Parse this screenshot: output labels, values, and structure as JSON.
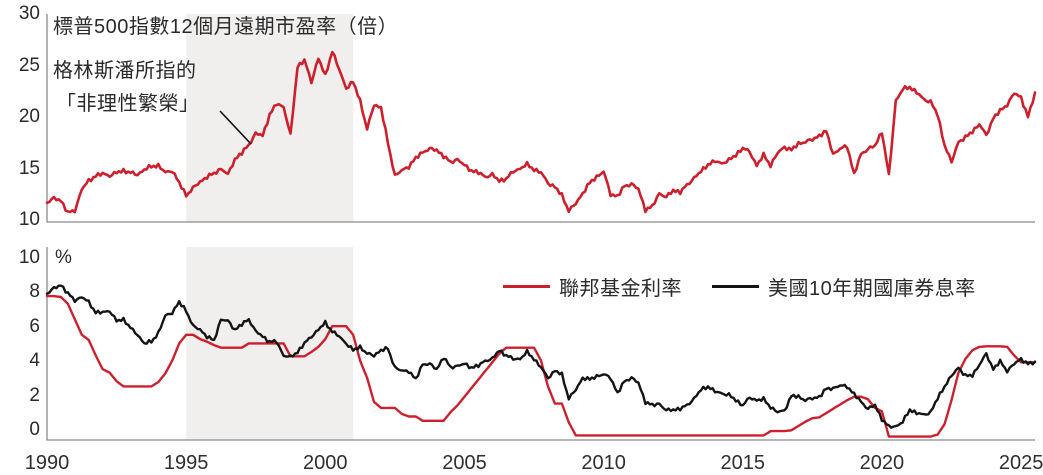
{
  "colors": {
    "accent_red": "#ce1f2d",
    "line_black": "#141414",
    "shade": "#f0efee",
    "axis": "#8a8a8a",
    "text": "#2a2a2a"
  },
  "chart_data": [
    {
      "type": "line",
      "title": "標普500指數12個月遠期市盈率（倍）",
      "annotations": [
        "格林斯潘所指的",
        "「非理性繁榮」"
      ],
      "xlim": [
        1990,
        2025.5
      ],
      "ylim": [
        10,
        30
      ],
      "y_ticks": [
        30,
        25,
        20,
        15,
        10
      ],
      "x_ticks": [
        1990,
        1995,
        2000,
        2005,
        2010,
        2015,
        2020,
        2025
      ],
      "x_labels_shown": false,
      "grid": false,
      "legend": "none",
      "shaded_span": [
        1995,
        2001
      ],
      "x_start": 1990,
      "x_step": 0.25,
      "series": [
        {
          "id": "forward_pe",
          "name": "標普500指數12個月遠期市盈率",
          "color": "#ce1f2d",
          "values": [
            11.7,
            12.1,
            11.9,
            10.7,
            10.9,
            13.0,
            13.8,
            14.3,
            14.5,
            14.3,
            14.6,
            14.8,
            14.6,
            14.4,
            14.9,
            15.2,
            15.3,
            14.6,
            14.8,
            13.6,
            12.4,
            13.1,
            13.7,
            14.2,
            14.5,
            15.0,
            14.4,
            15.9,
            16.5,
            17.3,
            18.4,
            18.2,
            20.2,
            21.3,
            21.0,
            18.2,
            24.9,
            25.5,
            23.4,
            25.7,
            24.0,
            26.4,
            24.6,
            22.8,
            23.4,
            21.6,
            18.8,
            21.2,
            20.9,
            17.5,
            14.3,
            14.8,
            15.2,
            16.0,
            16.6,
            16.9,
            16.8,
            16.2,
            15.6,
            15.9,
            15.3,
            14.8,
            14.6,
            14.2,
            14.4,
            13.8,
            14.0,
            14.7,
            15.0,
            15.4,
            14.9,
            14.6,
            13.6,
            13.2,
            12.4,
            10.9,
            11.6,
            12.6,
            13.6,
            14.2,
            14.7,
            12.5,
            12.3,
            13.3,
            13.5,
            13.0,
            11.0,
            11.3,
            12.6,
            12.2,
            12.9,
            12.7,
            13.4,
            14.1,
            14.7,
            15.4,
            15.7,
            15.5,
            15.8,
            16.3,
            17.0,
            16.6,
            15.3,
            16.3,
            15.3,
            16.5,
            17.1,
            16.8,
            17.4,
            17.6,
            17.8,
            18.2,
            18.6,
            16.4,
            16.9,
            17.2,
            14.4,
            16.4,
            16.9,
            17.2,
            18.6,
            14.3,
            21.6,
            22.7,
            22.9,
            22.4,
            21.7,
            21.5,
            20.2,
            17.3,
            15.6,
            17.6,
            18.0,
            18.6,
            19.3,
            18.2,
            19.9,
            20.6,
            21.2,
            22.3,
            21.9,
            20.0,
            22.3
          ]
        }
      ]
    },
    {
      "type": "line",
      "title": "",
      "ylabel": "%",
      "xlim": [
        1990,
        2025.5
      ],
      "ylim": [
        0,
        10
      ],
      "y_ticks": [
        10,
        8,
        6,
        4,
        2,
        0
      ],
      "x_ticks": [
        1990,
        1995,
        2000,
        2005,
        2010,
        2015,
        2020,
        2025
      ],
      "x_tick_labels": [
        "1990",
        "1995",
        "2000",
        "2005",
        "2010",
        "2015",
        "2020",
        "2025"
      ],
      "x_labels_shown": true,
      "grid": false,
      "legend": "top-center",
      "shaded_span": [
        1995,
        2001
      ],
      "x_start": 1990,
      "x_step": 0.25,
      "series": [
        {
          "id": "fed_funds",
          "name": "聯邦基金利率",
          "color": "#ce1f2d",
          "values": [
            8.25,
            8.25,
            8.2,
            7.8,
            6.9,
            6.0,
            5.7,
            4.8,
            4.0,
            3.8,
            3.3,
            3.0,
            3.0,
            3.0,
            3.0,
            3.0,
            3.25,
            3.75,
            4.5,
            5.5,
            6.0,
            6.0,
            5.75,
            5.6,
            5.4,
            5.25,
            5.25,
            5.25,
            5.25,
            5.5,
            5.5,
            5.5,
            5.5,
            5.5,
            5.5,
            4.75,
            4.75,
            4.75,
            5.0,
            5.3,
            5.75,
            6.5,
            6.5,
            6.5,
            6.0,
            4.5,
            3.5,
            2.1,
            1.75,
            1.75,
            1.75,
            1.4,
            1.25,
            1.25,
            1.0,
            1.0,
            1.0,
            1.0,
            1.5,
            1.9,
            2.4,
            2.9,
            3.4,
            3.9,
            4.4,
            4.9,
            5.25,
            5.25,
            5.25,
            5.25,
            5.25,
            4.5,
            3.0,
            2.0,
            2.0,
            0.9,
            0.15,
            0.15,
            0.15,
            0.15,
            0.15,
            0.15,
            0.15,
            0.15,
            0.15,
            0.15,
            0.15,
            0.15,
            0.15,
            0.15,
            0.15,
            0.15,
            0.15,
            0.15,
            0.15,
            0.15,
            0.15,
            0.15,
            0.15,
            0.15,
            0.15,
            0.15,
            0.15,
            0.15,
            0.4,
            0.4,
            0.4,
            0.45,
            0.7,
            0.95,
            1.15,
            1.2,
            1.45,
            1.7,
            1.95,
            2.2,
            2.4,
            2.4,
            2.25,
            1.75,
            1.55,
            0.08,
            0.08,
            0.08,
            0.08,
            0.08,
            0.08,
            0.08,
            0.2,
            0.8,
            2.2,
            3.8,
            4.6,
            5.1,
            5.3,
            5.33,
            5.33,
            5.33,
            5.3,
            4.8,
            4.4,
            4.4,
            4.4
          ]
        },
        {
          "id": "ust10y",
          "name": "美國10年期國庫券息率",
          "color": "#141414",
          "values": [
            8.4,
            8.7,
            8.9,
            8.4,
            8.0,
            8.2,
            7.9,
            7.3,
            7.3,
            7.4,
            6.8,
            6.9,
            6.4,
            6.0,
            5.5,
            5.6,
            6.1,
            7.1,
            7.3,
            7.9,
            7.4,
            6.5,
            6.3,
            5.9,
            5.65,
            6.9,
            6.8,
            6.3,
            6.6,
            6.9,
            6.2,
            5.9,
            5.6,
            5.6,
            4.8,
            4.7,
            5.0,
            5.5,
            5.9,
            6.3,
            6.7,
            6.2,
            5.9,
            5.5,
            5.1,
            5.3,
            4.9,
            4.8,
            5.1,
            5.2,
            4.1,
            3.9,
            3.9,
            3.4,
            4.3,
            4.3,
            4.0,
            4.7,
            4.1,
            4.2,
            4.3,
            4.1,
            4.2,
            4.5,
            4.6,
            5.1,
            4.8,
            4.6,
            4.6,
            5.0,
            4.6,
            4.1,
            3.5,
            3.9,
            3.7,
            2.3,
            2.8,
            3.5,
            3.4,
            3.6,
            3.7,
            3.5,
            2.6,
            3.3,
            3.5,
            3.2,
            2.1,
            1.9,
            2.0,
            1.6,
            1.65,
            1.7,
            1.9,
            2.3,
            2.8,
            3.0,
            2.7,
            2.6,
            2.5,
            2.2,
            1.9,
            2.35,
            2.2,
            2.25,
            1.8,
            1.5,
            1.6,
            2.45,
            2.4,
            2.2,
            2.3,
            2.4,
            2.85,
            2.9,
            3.05,
            3.0,
            2.55,
            2.1,
            1.7,
            1.9,
            1.1,
            0.65,
            0.68,
            0.93,
            1.65,
            1.45,
            1.35,
            1.5,
            2.3,
            3.0,
            3.6,
            4.1,
            3.6,
            3.65,
            4.25,
            4.9,
            4.0,
            4.45,
            3.9,
            4.3,
            4.6,
            4.3,
            4.4
          ]
        }
      ]
    }
  ]
}
